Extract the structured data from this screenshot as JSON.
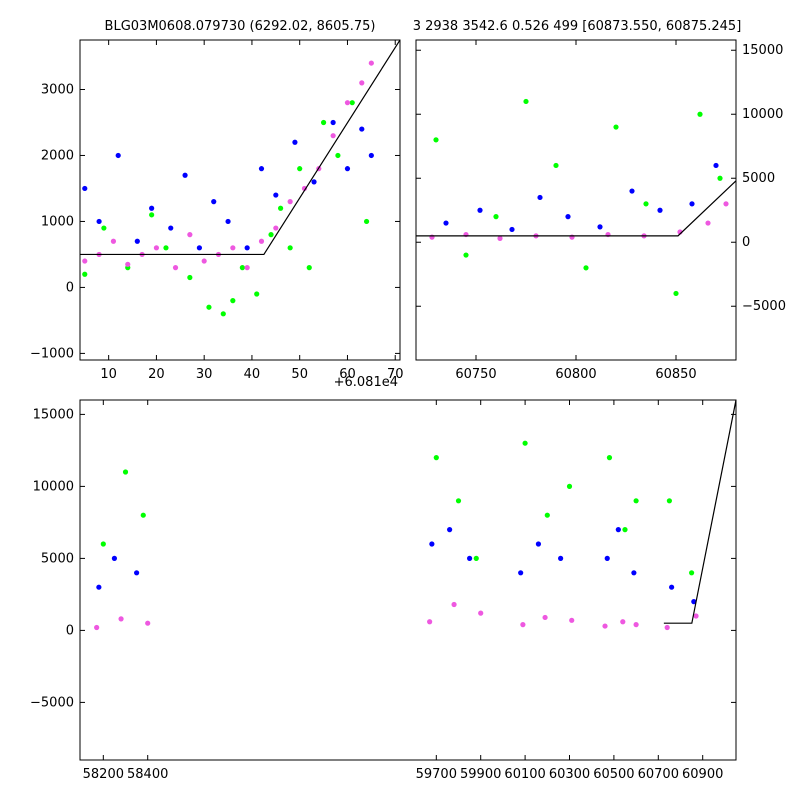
{
  "titles": {
    "left": "BLG03M0608.079730 (6292.02, 8605.75)",
    "right": "3 2938 3542.6 0.526 499 [60873.550, 60875.245]"
  },
  "colors": {
    "green": "#00ff00",
    "blue": "#0000ff",
    "pink": "#ee58e0",
    "line": "#000000"
  },
  "chart_data": [
    {
      "type": "scatter",
      "panel": "zoom",
      "xlim": [
        4,
        71
      ],
      "ylim": [
        -1100,
        3750
      ],
      "x_offset_label": "+6.081e4",
      "x_ticks": [
        10,
        20,
        30,
        40,
        50,
        60,
        70
      ],
      "y_ticks": [
        -1000,
        0,
        1000,
        2000,
        3000
      ],
      "y_tick_labels": [
        "−1000",
        "0",
        "1000",
        "2000",
        "3000"
      ],
      "series": [
        {
          "color": "green",
          "x": [
            5,
            9,
            14,
            19,
            22,
            27,
            31,
            34,
            36,
            38,
            41,
            44,
            46,
            48,
            50,
            52,
            55,
            58,
            61,
            64
          ],
          "y": [
            200,
            900,
            300,
            1100,
            600,
            150,
            -300,
            -400,
            -200,
            300,
            -100,
            800,
            1200,
            600,
            1800,
            300,
            2500,
            2000,
            2800,
            1000
          ]
        },
        {
          "color": "blue",
          "x": [
            5,
            8,
            12,
            16,
            19,
            23,
            26,
            29,
            32,
            35,
            39,
            42,
            45,
            49,
            53,
            57,
            60,
            63,
            65
          ],
          "y": [
            1500,
            1000,
            2000,
            700,
            1200,
            900,
            1700,
            600,
            1300,
            1000,
            600,
            1800,
            1400,
            2200,
            1600,
            2500,
            1800,
            2400,
            2000
          ]
        },
        {
          "color": "pink",
          "x": [
            5,
            8,
            11,
            14,
            17,
            20,
            24,
            27,
            30,
            33,
            36,
            39,
            42,
            45,
            48,
            51,
            54,
            57,
            60,
            63,
            65
          ],
          "y": [
            400,
            500,
            700,
            350,
            500,
            600,
            300,
            800,
            400,
            500,
            600,
            300,
            700,
            900,
            1300,
            1500,
            1800,
            2300,
            2800,
            3100,
            3400
          ]
        }
      ],
      "model": {
        "x": [
          4,
          42.5,
          71
        ],
        "y": [
          500,
          500,
          3750
        ]
      }
    },
    {
      "type": "scatter",
      "panel": "mid",
      "xlim": [
        60720,
        60880
      ],
      "ylim": [
        -9200,
        15800
      ],
      "x_ticks": [
        60750,
        60800,
        60850
      ],
      "y_ticks": [
        -5000,
        0,
        5000,
        10000,
        15000
      ],
      "y_tick_labels": [
        "−5000",
        "0",
        "5000",
        "10000",
        "15000"
      ],
      "series": [
        {
          "color": "green",
          "x": [
            60730,
            60745,
            60760,
            60775,
            60790,
            60805,
            60820,
            60835,
            60850,
            60862,
            60872
          ],
          "y": [
            8000,
            -1000,
            2000,
            11000,
            6000,
            -2000,
            9000,
            3000,
            -4000,
            10000,
            5000
          ]
        },
        {
          "color": "blue",
          "x": [
            60735,
            60752,
            60768,
            60782,
            60796,
            60812,
            60828,
            60842,
            60858,
            60870
          ],
          "y": [
            1500,
            2500,
            1000,
            3500,
            2000,
            1200,
            4000,
            2500,
            3000,
            6000
          ]
        },
        {
          "color": "pink",
          "x": [
            60728,
            60745,
            60762,
            60780,
            60798,
            60816,
            60834,
            60852,
            60866,
            60875
          ],
          "y": [
            400,
            600,
            300,
            500,
            400,
            600,
            500,
            800,
            1500,
            3000
          ]
        }
      ],
      "model": {
        "x": [
          60720,
          60851,
          60880
        ],
        "y": [
          500,
          500,
          4800
        ]
      }
    },
    {
      "type": "scatter",
      "panel": "full",
      "xlim": [
        58095,
        61050
      ],
      "ylim": [
        -9000,
        16000
      ],
      "x_ticks": [
        58200,
        58400,
        59700,
        59900,
        60100,
        60300,
        60500,
        60700,
        60900
      ],
      "y_ticks": [
        -5000,
        0,
        5000,
        10000,
        15000
      ],
      "y_tick_labels": [
        "−5000",
        "0",
        "5000",
        "10000",
        "15000"
      ],
      "segments": [
        [
          58155,
          58420
        ],
        [
          59650,
          59920
        ],
        [
          60065,
          60320
        ],
        [
          60455,
          60610
        ],
        [
          60720,
          60880
        ]
      ],
      "series": [
        {
          "color": "green",
          "x": [
            58200,
            58300,
            58380,
            59700,
            59800,
            59880,
            60100,
            60200,
            60300,
            60480,
            60550,
            60600,
            60750,
            60850
          ],
          "y": [
            6000,
            11000,
            8000,
            12000,
            9000,
            5000,
            13000,
            8000,
            10000,
            12000,
            7000,
            9000,
            9000,
            4000
          ]
        },
        {
          "color": "blue",
          "x": [
            58180,
            58250,
            58350,
            59680,
            59760,
            59850,
            60080,
            60160,
            60260,
            60470,
            60520,
            60590,
            60760,
            60860
          ],
          "y": [
            3000,
            5000,
            4000,
            6000,
            7000,
            5000,
            4000,
            6000,
            5000,
            5000,
            7000,
            4000,
            3000,
            2000
          ]
        },
        {
          "color": "pink",
          "x": [
            58170,
            58280,
            58400,
            59670,
            59780,
            59900,
            60090,
            60190,
            60310,
            60460,
            60540,
            60600,
            60740,
            60870
          ],
          "y": [
            200,
            800,
            500,
            600,
            1800,
            1200,
            400,
            900,
            700,
            300,
            600,
            400,
            200,
            1000
          ]
        }
      ],
      "model": {
        "x": [
          60725,
          60851,
          61050
        ],
        "y": [
          500,
          500,
          16000
        ]
      }
    }
  ]
}
